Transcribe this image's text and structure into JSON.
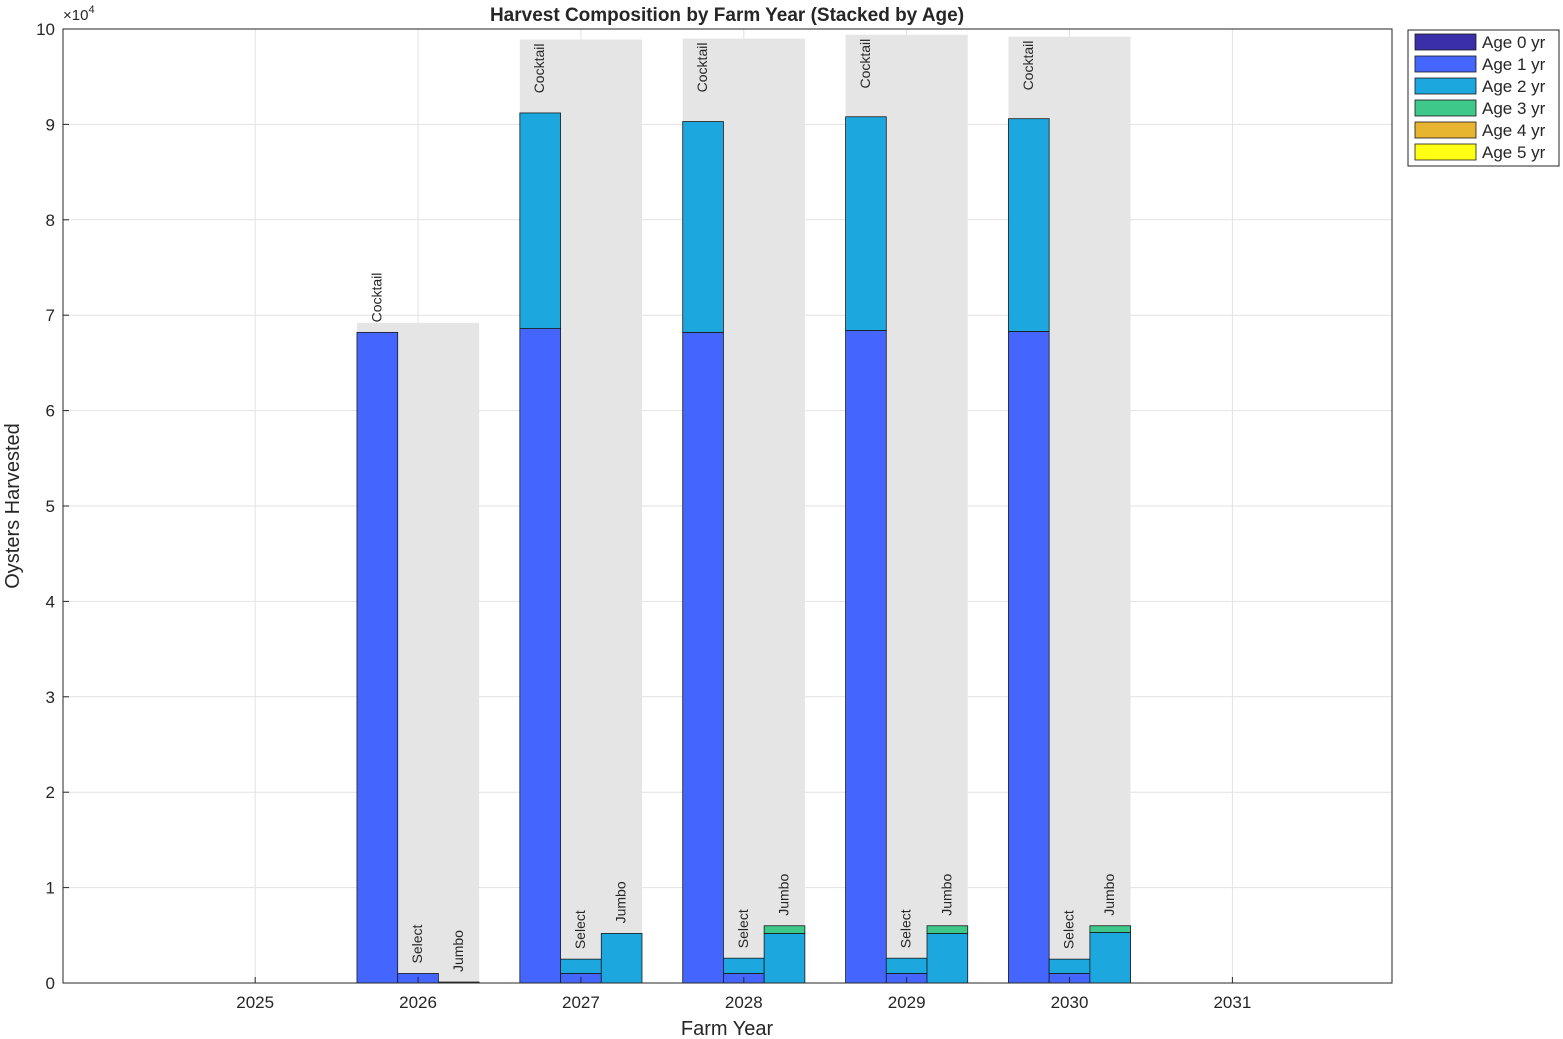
{
  "chart_data": {
    "type": "bar",
    "stacked": true,
    "title": "Harvest Composition by Farm Year (Stacked by Age)",
    "xlabel": "Farm Year",
    "ylabel": "Oysters Harvested",
    "y_exponent_label": "×10",
    "y_exponent_power": "4",
    "ylim": [
      0,
      100000
    ],
    "yticks": [
      0,
      10000,
      20000,
      30000,
      40000,
      50000,
      60000,
      70000,
      80000,
      90000,
      100000
    ],
    "ytick_labels": [
      "0",
      "1",
      "2",
      "3",
      "4",
      "5",
      "6",
      "7",
      "8",
      "9",
      "10"
    ],
    "xlim": [
      2023.82,
      2031.98
    ],
    "xticks": [
      2025,
      2026,
      2027,
      2028,
      2029,
      2030,
      2031
    ],
    "xtick_labels": [
      "2025",
      "2026",
      "2027",
      "2028",
      "2029",
      "2030",
      "2031"
    ],
    "grid": true,
    "legend_position": "outside-top-right",
    "size_classes": [
      "Cocktail",
      "Select",
      "Jumbo"
    ],
    "series": [
      {
        "name": "Age 0 yr",
        "color": "#3A2FA8"
      },
      {
        "name": "Age 1 yr",
        "color": "#4466FF"
      },
      {
        "name": "Age 2 yr",
        "color": "#1CA8DE"
      },
      {
        "name": "Age 3 yr",
        "color": "#3EC98A"
      },
      {
        "name": "Age 4 yr",
        "color": "#E8B530"
      },
      {
        "name": "Age 5 yr",
        "color": "#FFFF14"
      }
    ],
    "years": [
      {
        "year": 2026,
        "background_top": 69200,
        "bars": [
          {
            "class": "Cocktail",
            "values": [
              0,
              68200,
              0,
              0,
              0,
              0
            ]
          },
          {
            "class": "Select",
            "values": [
              0,
              1000,
              0,
              0,
              0,
              0
            ]
          },
          {
            "class": "Jumbo",
            "values": [
              0,
              0,
              100,
              0,
              0,
              0
            ]
          }
        ]
      },
      {
        "year": 2027,
        "background_top": 98900,
        "bars": [
          {
            "class": "Cocktail",
            "values": [
              0,
              68600,
              22600,
              0,
              0,
              0
            ]
          },
          {
            "class": "Select",
            "values": [
              0,
              1000,
              1500,
              0,
              0,
              0
            ]
          },
          {
            "class": "Jumbo",
            "values": [
              0,
              0,
              5200,
              0,
              0,
              0
            ]
          }
        ]
      },
      {
        "year": 2028,
        "background_top": 99000,
        "bars": [
          {
            "class": "Cocktail",
            "values": [
              0,
              68200,
              22100,
              0,
              0,
              0
            ]
          },
          {
            "class": "Select",
            "values": [
              0,
              1000,
              1600,
              0,
              0,
              0
            ]
          },
          {
            "class": "Jumbo",
            "values": [
              0,
              0,
              5200,
              800,
              0,
              0
            ]
          }
        ]
      },
      {
        "year": 2029,
        "background_top": 99400,
        "bars": [
          {
            "class": "Cocktail",
            "values": [
              0,
              68400,
              22400,
              0,
              0,
              0
            ]
          },
          {
            "class": "Select",
            "values": [
              0,
              1000,
              1600,
              0,
              0,
              0
            ]
          },
          {
            "class": "Jumbo",
            "values": [
              0,
              0,
              5200,
              800,
              0,
              0
            ]
          }
        ]
      },
      {
        "year": 2030,
        "background_top": 99200,
        "bars": [
          {
            "class": "Cocktail",
            "values": [
              0,
              68300,
              22300,
              0,
              0,
              0
            ]
          },
          {
            "class": "Select",
            "values": [
              0,
              1000,
              1500,
              0,
              0,
              0
            ]
          },
          {
            "class": "Jumbo",
            "values": [
              0,
              0,
              5300,
              700,
              0,
              0
            ]
          }
        ]
      }
    ]
  }
}
